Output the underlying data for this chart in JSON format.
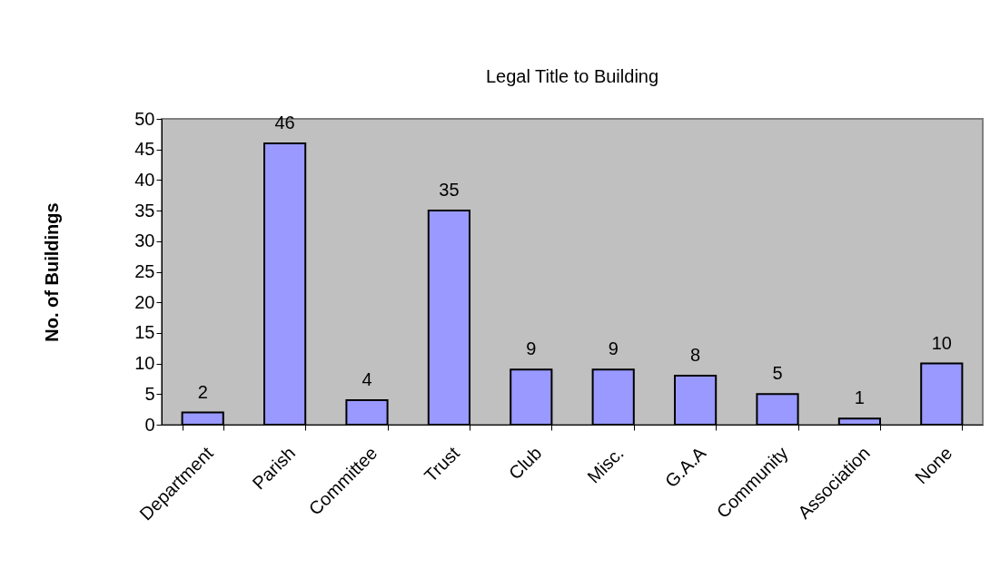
{
  "chart_data": {
    "type": "bar",
    "title": "Legal Title to Building",
    "ylabel": "No. of Buildings",
    "categories": [
      "Department",
      "Parish",
      "Committee",
      "Trust",
      "Club",
      "Misc.",
      "G.A.A",
      "Community",
      "Association",
      "None"
    ],
    "values": [
      2,
      46,
      4,
      35,
      9,
      9,
      8,
      5,
      1,
      10
    ],
    "color": "#9999ff",
    "ylim": [
      0,
      50
    ],
    "yticks": [
      0,
      5,
      10,
      15,
      20,
      25,
      30,
      35,
      40,
      45,
      50
    ],
    "data_labels": true
  }
}
